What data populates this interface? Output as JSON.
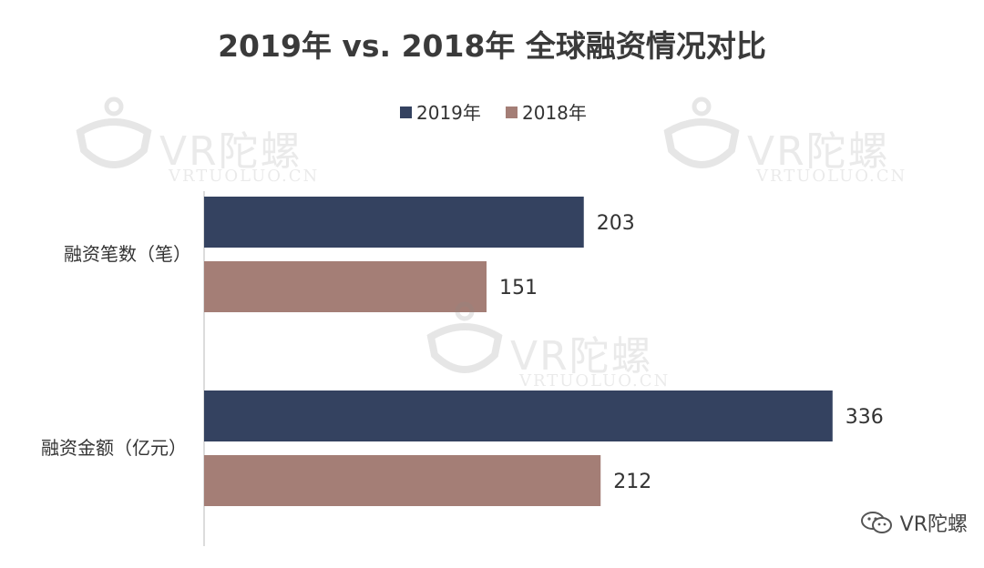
{
  "chart_data": {
    "type": "bar",
    "orientation": "horizontal",
    "title": "2019年 vs. 2018年 全球融资情况对比",
    "categories": [
      "融资笔数（笔）",
      "融资金额（亿元）"
    ],
    "series": [
      {
        "name": "2019年",
        "color": "#344260",
        "values": [
          203,
          336
        ]
      },
      {
        "name": "2018年",
        "color": "#a47e76",
        "values": [
          151,
          212
        ]
      }
    ],
    "xlim": [
      0,
      340
    ],
    "data_labels": true,
    "legend": "top-center",
    "grid": false
  },
  "watermark": {
    "text": "VR陀螺",
    "sub": "VRTUOLUO.CN"
  },
  "footer": {
    "label": "VR陀螺",
    "icon": "wechat-icon"
  }
}
